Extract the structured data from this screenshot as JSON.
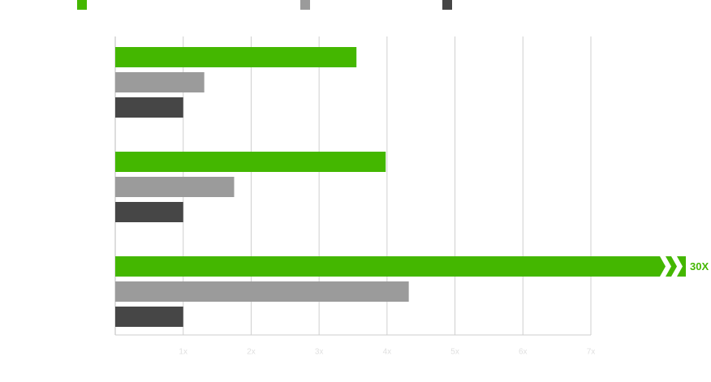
{
  "chart_data": {
    "type": "bar",
    "orientation": "horizontal",
    "categories": [
      null,
      null,
      null
    ],
    "series": [
      {
        "color": "#44b700",
        "values": [
          3.55,
          3.98,
          30
        ],
        "value_labels": [
          null,
          null,
          "30X"
        ]
      },
      {
        "color": "#9b9b9b",
        "values": [
          1.31,
          1.75,
          4.32
        ]
      },
      {
        "color": "#464646",
        "values": [
          1,
          1,
          1
        ]
      }
    ],
    "xlim": [
      0,
      7
    ],
    "xticks": [
      {
        "value": 1,
        "label": "1x"
      },
      {
        "value": 2,
        "label": "2x"
      },
      {
        "value": 3,
        "label": "3x"
      },
      {
        "value": 4,
        "label": "4x"
      },
      {
        "value": 5,
        "label": "5x"
      },
      {
        "value": 6,
        "label": "6x"
      },
      {
        "value": 7,
        "label": "7x"
      }
    ],
    "grid": true
  }
}
